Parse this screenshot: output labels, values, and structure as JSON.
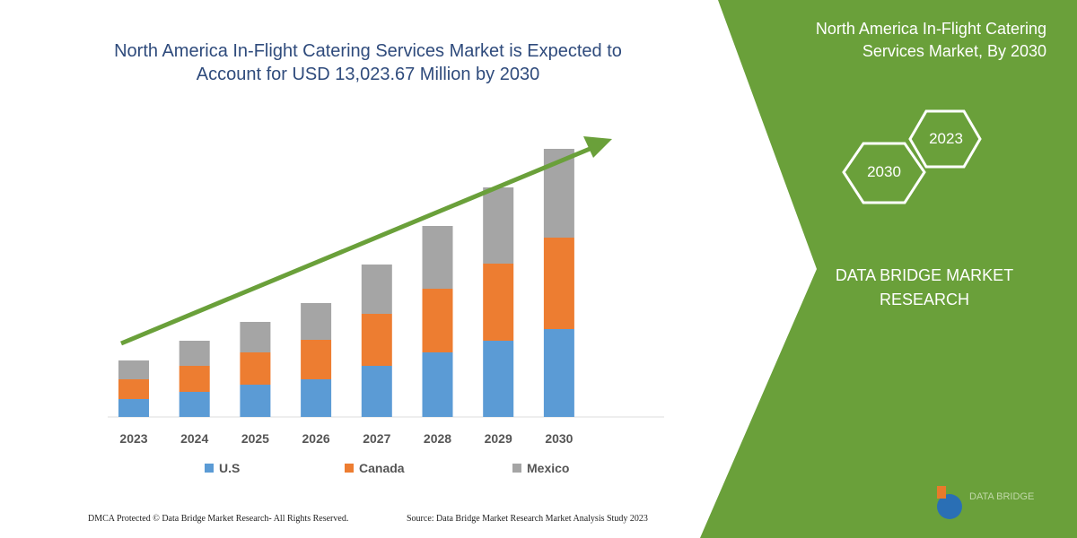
{
  "title": "North America In-Flight Catering Services Market is Expected to Account for USD 13,023.67 Million by 2030",
  "side_panel": {
    "title": "North America In-Flight Catering Services Market, By 2030",
    "hex_labels": [
      "2023",
      "2030"
    ],
    "brand": "DATA BRIDGE MARKET RESEARCH",
    "logo_text": "DATA BRIDGE",
    "color": "#6aa03a"
  },
  "footer": {
    "dmca": "DMCA Protected © Data Bridge Market Research-  All Rights Reserved.",
    "source": "Source: Data Bridge Market Research  Market Analysis Study 2023"
  },
  "chart_data": {
    "type": "bar",
    "stacked": true,
    "title": "North America In-Flight Catering Services Market is Expected to Account for USD 13,023.67 Million by 2030",
    "categories": [
      "2023",
      "2024",
      "2025",
      "2026",
      "2027",
      "2028",
      "2029",
      "2030"
    ],
    "series": [
      {
        "name": "U.S",
        "color": "#5b9bd5",
        "values": [
          20,
          28,
          36,
          42,
          57,
          72,
          85,
          98
        ]
      },
      {
        "name": "Canada",
        "color": "#ed7d31",
        "values": [
          22,
          29,
          36,
          44,
          58,
          71,
          86,
          102
        ]
      },
      {
        "name": "Mexico",
        "color": "#a5a5a5",
        "values": [
          21,
          28,
          34,
          41,
          55,
          70,
          85,
          99
        ]
      }
    ],
    "ylim": [
      0,
      300
    ],
    "grid": false,
    "legend": "bottom",
    "trend_arrow_color": "#6aa03a"
  }
}
